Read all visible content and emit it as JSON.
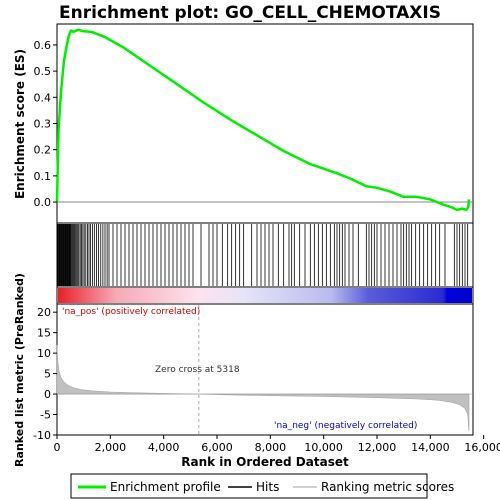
{
  "title": "Enrichment plot: GO_CELL_CHEMOTAXIS",
  "colors": {
    "es_curve": "#00ee00",
    "hits": "#000000",
    "metric_fill": "#c0c0c0",
    "pos_label": "#dd0000",
    "neg_label": "#0000dd"
  },
  "annotations": {
    "pos": "'na_pos' (positively correlated)",
    "neg": "'na_neg' (negatively correlated)",
    "zero_cross": "Zero cross at 5318"
  },
  "legend": {
    "es": "Enrichment profile",
    "hits": "Hits",
    "metric": "Ranking metric scores"
  },
  "chart_data": [
    {
      "type": "line",
      "panel": "enrichment",
      "ylabel": "Enrichment score (ES)",
      "ylim": [
        -0.08,
        0.68
      ],
      "yticks": [
        "0.0",
        "0.1",
        "0.2",
        "0.3",
        "0.4",
        "0.5",
        "0.6"
      ],
      "ytick_values": [
        0.0,
        0.1,
        0.2,
        0.3,
        0.4,
        0.5,
        0.6
      ],
      "xlim": [
        0,
        15600
      ],
      "grid": false,
      "series": [
        {
          "name": "Enrichment profile",
          "x": [
            0,
            60,
            150,
            250,
            330,
            430,
            520,
            620,
            800,
            1000,
            1300,
            1800,
            2500,
            3500,
            4500,
            5500,
            6500,
            7500,
            8500,
            9500,
            10500,
            11000,
            11600,
            12000,
            12500,
            13000,
            13500,
            14000,
            14500,
            14800,
            15000,
            15200,
            15350,
            15420,
            15450
          ],
          "y": [
            0.0,
            0.28,
            0.42,
            0.53,
            0.58,
            0.63,
            0.655,
            0.65,
            0.658,
            0.652,
            0.65,
            0.63,
            0.59,
            0.52,
            0.45,
            0.38,
            0.315,
            0.255,
            0.195,
            0.145,
            0.11,
            0.09,
            0.06,
            0.055,
            0.04,
            0.02,
            0.02,
            0.01,
            -0.01,
            -0.02,
            -0.03,
            -0.025,
            -0.03,
            -0.02,
            0.01
          ]
        }
      ]
    },
    {
      "type": "rug",
      "panel": "hits",
      "hit_ranks": [
        10,
        35,
        60,
        85,
        110,
        135,
        160,
        185,
        210,
        235,
        260,
        285,
        310,
        335,
        360,
        385,
        410,
        435,
        460,
        485,
        510,
        540,
        580,
        620,
        660,
        700,
        740,
        780,
        820,
        870,
        920,
        970,
        1020,
        1080,
        1140,
        1200,
        1260,
        1330,
        1400,
        1480,
        1560,
        1640,
        1720,
        1800,
        1880,
        1950,
        2100,
        2250,
        2400,
        2550,
        2700,
        2850,
        3000,
        3150,
        3300,
        3450,
        3600,
        3750,
        3900,
        4050,
        4200,
        4350,
        4500,
        4650,
        4800,
        4950,
        5100,
        5400,
        5700,
        5850,
        6000,
        6200,
        6400,
        6550,
        6700,
        6850,
        7000,
        7300,
        7500,
        7650,
        7800,
        7950,
        8100,
        8300,
        8500,
        8700,
        8800,
        8900,
        9100,
        9300,
        9500,
        9650,
        9800,
        9950,
        10100,
        10250,
        10400,
        10500,
        10600,
        10700,
        10800,
        10950,
        11100,
        11300,
        11600,
        11700,
        11800,
        11900,
        12000,
        12150,
        12300,
        12450,
        12600,
        12750,
        12900,
        13000,
        13100,
        13200,
        13300,
        13450,
        13600,
        13750,
        13900,
        14050,
        14200,
        14350,
        14550,
        14900,
        15000,
        15100,
        15200,
        15300,
        15400
      ]
    },
    {
      "type": "area",
      "panel": "ranking_metric",
      "xlabel": "Rank in Ordered Dataset",
      "ylabel": "Ranked list metric (PreRanked)",
      "ylim": [
        -10,
        22
      ],
      "yticks": [
        "-10",
        "-5",
        "0",
        "5",
        "10",
        "15",
        "20"
      ],
      "ytick_values": [
        -10,
        -5,
        0,
        5,
        10,
        15,
        20
      ],
      "xlim": [
        0,
        15600
      ],
      "xticks": [
        "0",
        "2,000",
        "4,000",
        "6,000",
        "8,000",
        "10,000",
        "12,000",
        "14,000",
        "16,000"
      ],
      "xtick_values": [
        0,
        2000,
        4000,
        6000,
        8000,
        10000,
        12000,
        14000,
        16000
      ],
      "zero_cross": 5318,
      "x": [
        0,
        30,
        80,
        150,
        250,
        400,
        600,
        900,
        1300,
        2000,
        3000,
        4000,
        5318,
        6500,
        8000,
        10000,
        12000,
        13500,
        14300,
        14800,
        15100,
        15300,
        15400,
        15440,
        15450
      ],
      "y": [
        12,
        8,
        5.5,
        4,
        3,
        2.2,
        1.6,
        1.1,
        0.8,
        0.5,
        0.3,
        0.15,
        0,
        -0.2,
        -0.4,
        -0.6,
        -0.9,
        -1.2,
        -1.5,
        -2,
        -2.6,
        -3.5,
        -5,
        -8.5,
        -9
      ]
    }
  ]
}
